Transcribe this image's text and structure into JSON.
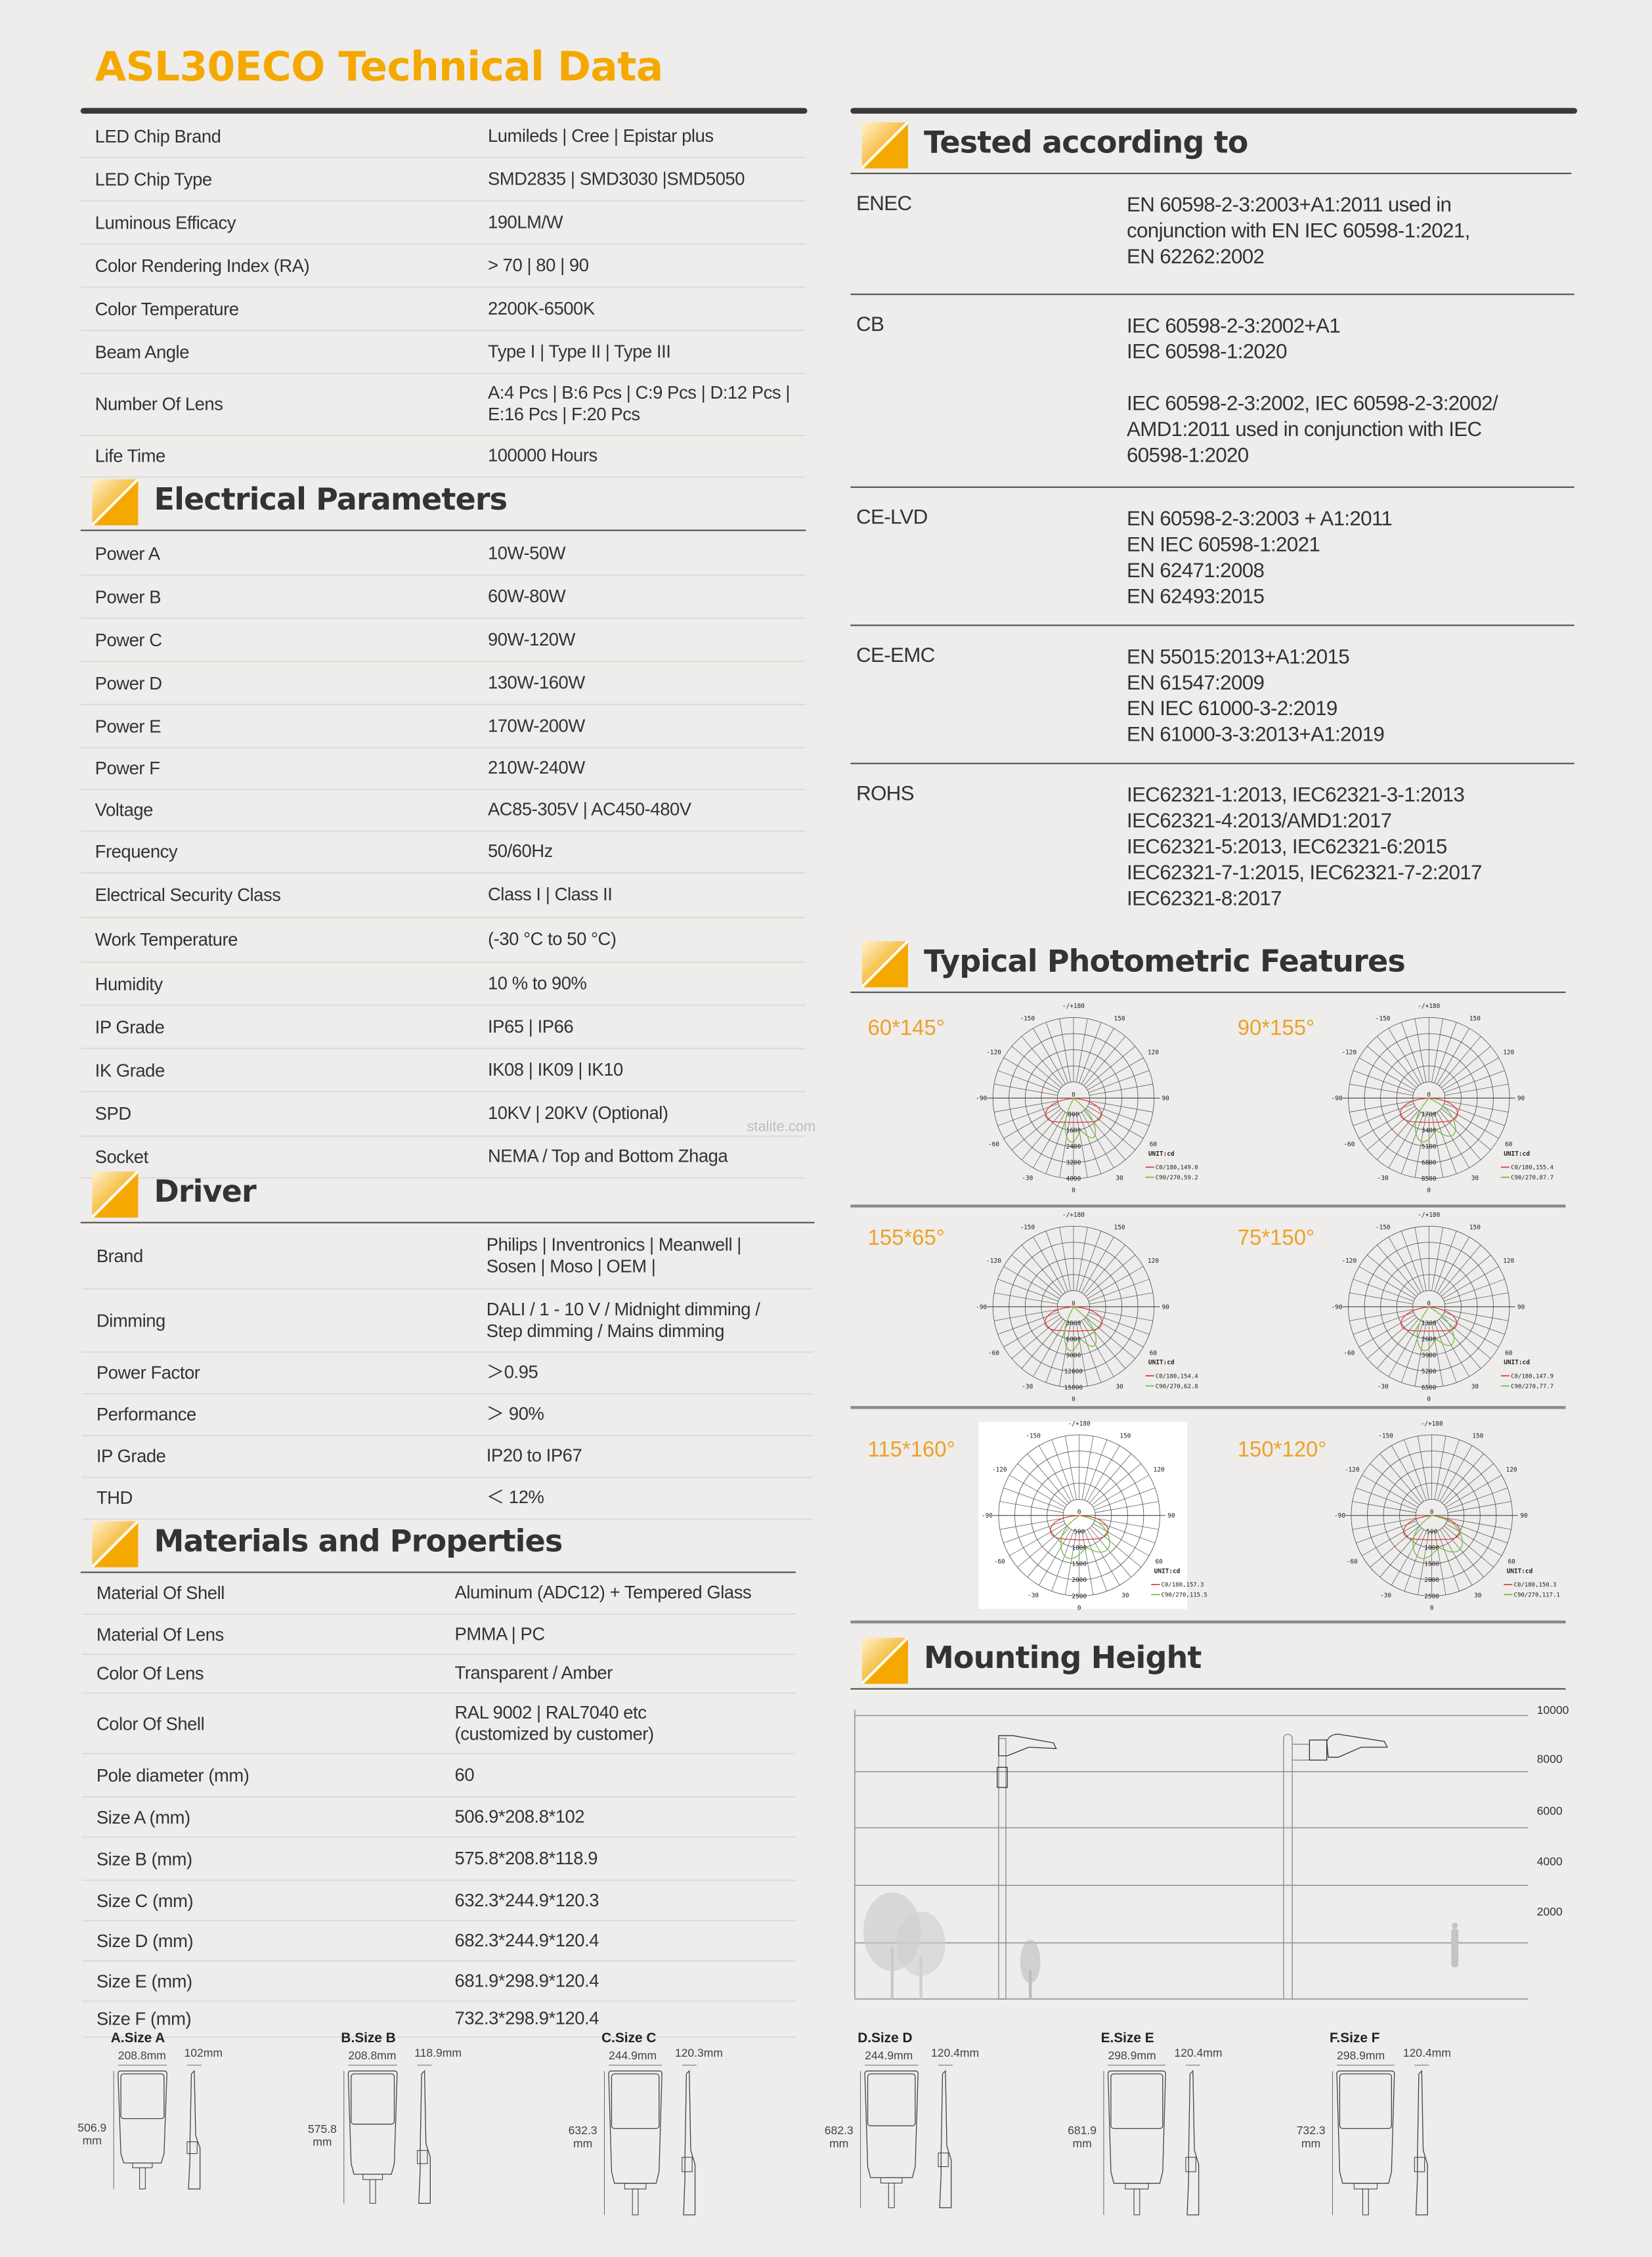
{
  "title": "ASL30ECO Technical Data",
  "watermark": "stalite.com",
  "general": {
    "rows": [
      {
        "label": "LED Chip Brand",
        "value": "Lumileds | Cree | Epistar plus"
      },
      {
        "label": "LED Chip Type",
        "value": "SMD2835 | SMD3030 |SMD5050"
      },
      {
        "label": "Luminous Efficacy",
        "value": "190LM/W"
      },
      {
        "label": "Color Rendering Index (RA)",
        "value": "> 70  |  80  |   90"
      },
      {
        "label": "Color Temperature",
        "value": "2200K-6500K"
      },
      {
        "label": "Beam Angle",
        "value": "Type I  | Type II  | Type III"
      },
      {
        "label": "Number Of Lens",
        "value": "A:4 Pcs  |  B:6 Pcs  |  C:9 Pcs  |  D:12 Pcs  |\nE:16 Pcs  |  F:20 Pcs"
      },
      {
        "label": "Life Time",
        "value": "100000 Hours"
      }
    ]
  },
  "electrical": {
    "title": "Electrical Parameters",
    "rows": [
      {
        "label": "Power A",
        "value": "10W-50W"
      },
      {
        "label": "Power B",
        "value": "60W-80W"
      },
      {
        "label": "Power C",
        "value": "90W-120W"
      },
      {
        "label": "Power D",
        "value": "130W-160W"
      },
      {
        "label": "Power E",
        "value": "170W-200W"
      },
      {
        "label": "Power F",
        "value": "210W-240W"
      },
      {
        "label": "Voltage",
        "value": "AC85-305V | AC450-480V"
      },
      {
        "label": "Frequency",
        "value": "50/60Hz"
      },
      {
        "label": "Electrical Security Class",
        "value": "Class I  |  Class II"
      },
      {
        "label": "Work Temperature",
        "value": "(-30 °C to 50 °C)"
      },
      {
        "label": "Humidity",
        "value": "10 % to 90%"
      },
      {
        "label": "IP Grade",
        "value": "IP65 | IP66"
      },
      {
        "label": "IK Grade",
        "value": "IK08 | IK09 | IK10"
      },
      {
        "label": "SPD",
        "value": "10KV | 20KV   (Optional)"
      },
      {
        "label": "Socket",
        "value": "NEMA / Top and Bottom Zhaga"
      }
    ]
  },
  "driver": {
    "title": "Driver",
    "rows": [
      {
        "label": "Brand",
        "value": "Philips | Inventronics | Meanwell |\nSosen | Moso | OEM |"
      },
      {
        "label": "Dimming",
        "value": "DALI / 1 - 10 V / Midnight dimming /\nStep dimming / Mains dimming"
      },
      {
        "label": "Power Factor",
        "value": "＞0.95"
      },
      {
        "label": "Performance",
        "value": "＞ 90%"
      },
      {
        "label": "IP Grade",
        "value": "IP20 to IP67"
      },
      {
        "label": "THD",
        "value": "＜ 12%"
      }
    ]
  },
  "materials": {
    "title": "Materials and Properties",
    "rows": [
      {
        "label": "Material Of Shell",
        "value": "Aluminum (ADC12) + Tempered Glass"
      },
      {
        "label": "Material Of Lens",
        "value": "PMMA  |  PC"
      },
      {
        "label": "Color Of Lens",
        "value": "Transparent / Amber"
      },
      {
        "label": "Color Of Shell",
        "value": "RAL 9002  |  RAL7040 etc\n(customized by customer)"
      },
      {
        "label": "Pole diameter (mm)",
        "value": "60"
      },
      {
        "label": "Size A (mm)",
        "value": "506.9*208.8*102"
      },
      {
        "label": "Size B (mm)",
        "value": "575.8*208.8*118.9"
      },
      {
        "label": "Size C (mm)",
        "value": "632.3*244.9*120.3"
      },
      {
        "label": "Size D (mm)",
        "value": "682.3*244.9*120.4"
      },
      {
        "label": "Size E (mm)",
        "value": "681.9*298.9*120.4"
      },
      {
        "label": "Size F (mm)",
        "value": "732.3*298.9*120.4"
      }
    ]
  },
  "tested": {
    "title": "Tested according to",
    "rows": [
      {
        "label": "ENEC",
        "lines": [
          "EN 60598-2-3:2003+A1:2011 used in",
          "conjunction with EN IEC 60598-1:2021,",
          "EN 62262:2002"
        ]
      },
      {
        "label": "CB",
        "lines": [
          "IEC 60598-2-3:2002+A1",
          "IEC 60598-1:2020",
          "",
          "IEC 60598-2-3:2002, IEC 60598-2-3:2002/",
          "AMD1:2011 used in conjunction with IEC",
          "60598-1:2020"
        ]
      },
      {
        "label": "CE-LVD",
        "lines": [
          "EN 60598-2-3:2003 + A1:2011",
          "EN IEC 60598-1:2021",
          "EN 62471:2008",
          "EN 62493:2015"
        ]
      },
      {
        "label": "CE-EMC",
        "lines": [
          "EN 55015:2013+A1:2015",
          "EN 61547:2009",
          "EN IEC 61000-3-2:2019",
          "EN 61000-3-3:2013+A1:2019"
        ]
      },
      {
        "label": "ROHS",
        "lines": [
          "IEC62321-1:2013, IEC62321-3-1:2013",
          "IEC62321-4:2013/AMD1:2017",
          "IEC62321-5:2013, IEC62321-6:2015",
          "IEC62321-7-1:2015, IEC62321-7-2:2017",
          "IEC62321-8:2017"
        ]
      }
    ]
  },
  "photometric": {
    "title": "Typical Photometric Features",
    "angle_labels": [
      "-/+180",
      "150",
      "120",
      "90",
      "60",
      "30",
      "0",
      "-30",
      "-60",
      "-90",
      "-120",
      "-150"
    ],
    "unit": "UNIT:cd",
    "colors": {
      "c0": "#e03a3a",
      "c90": "#6cbf3a",
      "grid": "#444444"
    },
    "charts": [
      {
        "label": "60*145°",
        "rings": [
          "800",
          "1600",
          "2400",
          "3200",
          "4000"
        ],
        "c0": "C0/180,149.0",
        "c90": "C90/270,59.2",
        "c0_angle": 149.0,
        "c90_angle": 59.2
      },
      {
        "label": "90*155°",
        "rings": [
          "1700",
          "3400",
          "5100",
          "6800",
          "8500"
        ],
        "c0": "C0/180,155.4",
        "c90": "C90/270,87.7",
        "c0_angle": 155.4,
        "c90_angle": 87.7
      },
      {
        "label": "155*65°",
        "rings": [
          "3000",
          "6000",
          "9000",
          "12000",
          "15000"
        ],
        "c0": "C0/180,154.4",
        "c90": "C90/270,62.8",
        "c0_angle": 154.4,
        "c90_angle": 62.8
      },
      {
        "label": "75*150°",
        "rings": [
          "1300",
          "2600",
          "3900",
          "5200",
          "6500"
        ],
        "c0": "C0/180,147.9",
        "c90": "C90/270,77.7",
        "c0_angle": 147.9,
        "c90_angle": 77.7
      },
      {
        "label": "115*160°",
        "rings": [
          "500",
          "1000",
          "1500",
          "2000",
          "2500"
        ],
        "c0": "C0/180,157.3",
        "c90": "C90/270,115.5",
        "c0_angle": 157.3,
        "c90_angle": 115.5
      },
      {
        "label": "150*120°",
        "rings": [
          "500",
          "1000",
          "1500",
          "2000",
          "2500"
        ],
        "c0": "C0/180,150.3",
        "c90": "C90/270,117.1",
        "c0_angle": 150.3,
        "c90_angle": 117.1
      }
    ]
  },
  "mounting": {
    "title": "Mounting Height",
    "ticks": [
      "10000",
      "8000",
      "6000",
      "4000",
      "2000"
    ]
  },
  "sizes": [
    {
      "title": "A.Size A",
      "width": "208.8mm",
      "depth": "102mm",
      "height": "506.9\nmm"
    },
    {
      "title": "B.Size B",
      "width": "208.8mm",
      "depth": "118.9mm",
      "height": "575.8\nmm"
    },
    {
      "title": "C.Size C",
      "width": "244.9mm",
      "depth": "120.3mm",
      "height": "632.3\nmm"
    },
    {
      "title": "D.Size D",
      "width": "244.9mm",
      "depth": "120.4mm",
      "height": "682.3\nmm"
    },
    {
      "title": "E.Size E",
      "width": "298.9mm",
      "depth": "120.4mm",
      "height": "681.9\nmm"
    },
    {
      "title": "F.Size F",
      "width": "298.9mm",
      "depth": "120.4mm",
      "height": "732.3\nmm"
    }
  ]
}
